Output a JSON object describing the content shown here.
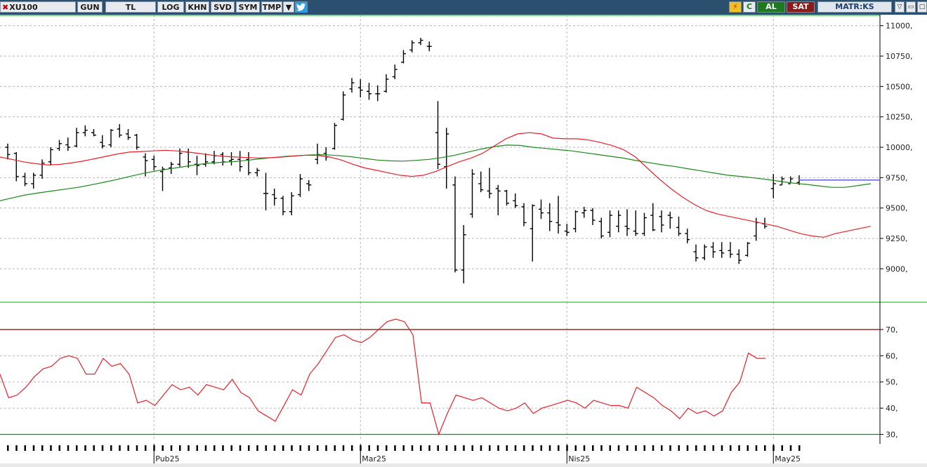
{
  "toolbar": {
    "symbol": "XU100",
    "period": "GUN",
    "currency": "TL",
    "buttons": [
      "LOG",
      "KHN",
      "SVD",
      "SYM",
      "TMP"
    ],
    "dropdown_icon": "caret-down-icon",
    "social_icon": "twitter-bird-icon",
    "flash_icon": "lightning-icon",
    "refresh_label": "C",
    "buy_label": "AL",
    "sell_label": "SAT",
    "brand_label": "MATR:KS",
    "window_icons": [
      "minimize-icon",
      "restore-icon",
      "close-icon"
    ]
  },
  "colors": {
    "toolbar_bg": "#2b4f6e",
    "buy_bg": "#1e7a1e",
    "sell_bg": "#8b1a1a",
    "bars": "#000000",
    "ma_short": "#e8202a",
    "ma_long": "#1a8a1a",
    "rsi_line": "#e8202a",
    "rsi_upper_line": "#8b1a1a",
    "rsi_lower_line": "#1a8a1a",
    "panel_border": "#55cc55",
    "grid": "#b8b8b8"
  },
  "chart_data": [
    {
      "type": "ohlc",
      "grid": true,
      "ylim": [
        8800,
        11050
      ],
      "y_ticks": [
        9000,
        9250,
        9500,
        9750,
        10000,
        10250,
        10500,
        10750,
        11000
      ],
      "y_tick_labels": [
        "9000,",
        "9250,",
        "9500,",
        "9750,",
        "10000,",
        "10250,",
        "10500,",
        "10750,",
        "11000,"
      ],
      "x_labels": [
        "Pub25",
        "Mar25",
        "Nis25",
        "May25"
      ],
      "x_label_bars": [
        17,
        41,
        65,
        89
      ],
      "bars": [
        [
          10000,
          10030,
          9900,
          9940
        ],
        [
          9950,
          9960,
          9720,
          9760
        ],
        [
          9760,
          9790,
          9680,
          9700
        ],
        [
          9700,
          9790,
          9660,
          9770
        ],
        [
          9770,
          9900,
          9740,
          9870
        ],
        [
          9880,
          10000,
          9850,
          9980
        ],
        [
          9990,
          10060,
          9970,
          10030
        ],
        [
          10020,
          10080,
          9970,
          10000
        ],
        [
          10010,
          10160,
          10000,
          10120
        ],
        [
          10120,
          10180,
          10090,
          10140
        ],
        [
          10120,
          10150,
          10090,
          10100
        ],
        [
          10040,
          10100,
          9990,
          10010
        ],
        [
          10020,
          10150,
          10000,
          10140
        ],
        [
          10150,
          10190,
          10080,
          10100
        ],
        [
          10110,
          10150,
          10060,
          10080
        ],
        [
          10100,
          10110,
          9980,
          10000
        ],
        [
          9920,
          9950,
          9760,
          9890
        ],
        [
          9900,
          9930,
          9810,
          9840
        ],
        [
          9800,
          9840,
          9640,
          9820
        ],
        [
          9830,
          9880,
          9780,
          9860
        ],
        [
          9860,
          9990,
          9840,
          9950
        ],
        [
          9960,
          9990,
          9830,
          9880
        ],
        [
          9860,
          9930,
          9770,
          9850
        ],
        [
          9860,
          9950,
          9840,
          9880
        ],
        [
          9880,
          9970,
          9860,
          9930
        ],
        [
          9940,
          9960,
          9850,
          9880
        ],
        [
          9890,
          9960,
          9850,
          9900
        ],
        [
          9900,
          9970,
          9800,
          9840
        ],
        [
          9900,
          9960,
          9770,
          9790
        ],
        [
          9790,
          9830,
          9760,
          9810
        ],
        [
          9620,
          9790,
          9480,
          9620
        ],
        [
          9610,
          9660,
          9520,
          9580
        ],
        [
          9580,
          9600,
          9440,
          9470
        ],
        [
          9470,
          9630,
          9440,
          9600
        ],
        [
          9610,
          9780,
          9590,
          9740
        ],
        [
          9700,
          9730,
          9640,
          9690
        ],
        [
          9900,
          10030,
          9860,
          9940
        ],
        [
          9950,
          10000,
          9890,
          9920
        ],
        [
          9990,
          10200,
          9980,
          10180
        ],
        [
          10230,
          10460,
          10220,
          10430
        ],
        [
          10480,
          10570,
          10450,
          10530
        ],
        [
          10490,
          10560,
          10410,
          10470
        ],
        [
          10460,
          10530,
          10390,
          10440
        ],
        [
          10440,
          10510,
          10380,
          10440
        ],
        [
          10460,
          10600,
          10450,
          10560
        ],
        [
          10580,
          10680,
          10560,
          10640
        ],
        [
          10700,
          10800,
          10690,
          10770
        ],
        [
          10800,
          10880,
          10780,
          10860
        ],
        [
          10860,
          10900,
          10840,
          10880
        ],
        [
          10830,
          10870,
          10790,
          10830
        ],
        [
          10120,
          10380,
          9820,
          9860
        ],
        [
          9840,
          10160,
          9660,
          10110
        ],
        [
          9690,
          9760,
          8970,
          8990
        ],
        [
          8990,
          9360,
          8880,
          9280
        ],
        [
          9450,
          9820,
          9420,
          9780
        ],
        [
          9700,
          9800,
          9630,
          9650
        ],
        [
          9640,
          9830,
          9580,
          9620
        ],
        [
          9660,
          9690,
          9440,
          9640
        ],
        [
          9640,
          9650,
          9520,
          9540
        ],
        [
          9560,
          9620,
          9500,
          9520
        ],
        [
          9510,
          9540,
          9350,
          9380
        ],
        [
          9330,
          9530,
          9060,
          9520
        ],
        [
          9490,
          9570,
          9410,
          9460
        ],
        [
          9460,
          9540,
          9310,
          9390
        ],
        [
          9380,
          9600,
          9290,
          9360
        ],
        [
          9310,
          9370,
          9270,
          9300
        ],
        [
          9330,
          9480,
          9300,
          9470
        ],
        [
          9460,
          9510,
          9420,
          9480
        ],
        [
          9480,
          9500,
          9360,
          9400
        ],
        [
          9390,
          9420,
          9250,
          9270
        ],
        [
          9300,
          9480,
          9260,
          9440
        ],
        [
          9350,
          9480,
          9300,
          9440
        ],
        [
          9350,
          9490,
          9270,
          9330
        ],
        [
          9310,
          9480,
          9270,
          9290
        ],
        [
          9290,
          9460,
          9270,
          9420
        ],
        [
          9440,
          9540,
          9310,
          9320
        ],
        [
          9430,
          9480,
          9300,
          9360
        ],
        [
          9440,
          9470,
          9330,
          9420
        ],
        [
          9340,
          9430,
          9270,
          9290
        ],
        [
          9290,
          9330,
          9210,
          9240
        ],
        [
          9140,
          9200,
          9060,
          9090
        ],
        [
          9090,
          9200,
          9070,
          9180
        ],
        [
          9180,
          9220,
          9090,
          9140
        ],
        [
          9150,
          9220,
          9090,
          9130
        ],
        [
          9150,
          9220,
          9090,
          9120
        ],
        [
          9120,
          9160,
          9040,
          9070
        ],
        [
          9110,
          9220,
          9100,
          9210
        ],
        [
          9270,
          9420,
          9230,
          9380
        ],
        [
          9370,
          9420,
          9330,
          9350
        ],
        [
          9660,
          9780,
          9580,
          9700
        ],
        [
          9690,
          9760,
          9690,
          9740
        ],
        [
          9700,
          9760,
          9710,
          9740
        ],
        [
          9710,
          9770,
          9690,
          9730
        ]
      ],
      "ma_short": [
        9920,
        9900,
        9880,
        9865,
        9855,
        9858,
        9870,
        9885,
        9905,
        9925,
        9945,
        9960,
        9965,
        9970,
        9975,
        9970,
        9960,
        9948,
        9935,
        9925,
        9920,
        9915,
        9912,
        9914,
        9920,
        9928,
        9935,
        9933,
        9920,
        9895,
        9860,
        9830,
        9810,
        9790,
        9770,
        9760,
        9770,
        9800,
        9840,
        9880,
        9910,
        9950,
        10010,
        10070,
        10110,
        10120,
        10110,
        10075,
        10070,
        10070,
        10060,
        10040,
        10015,
        9980,
        9920,
        9830,
        9740,
        9660,
        9590,
        9530,
        9480,
        9450,
        9430,
        9410,
        9390,
        9370,
        9350,
        9320,
        9290,
        9270,
        9260,
        9290,
        9310,
        9330,
        9350
      ],
      "ma_long": [
        9560,
        9585,
        9608,
        9625,
        9640,
        9655,
        9670,
        9690,
        9712,
        9735,
        9760,
        9785,
        9805,
        9822,
        9838,
        9855,
        9868,
        9876,
        9882,
        9892,
        9905,
        9915,
        9925,
        9932,
        9937,
        9938,
        9932,
        9922,
        9908,
        9895,
        9888,
        9886,
        9892,
        9900,
        9915,
        9935,
        9960,
        9985,
        10005,
        10018,
        10015,
        10000,
        9990,
        9980,
        9970,
        9955,
        9940,
        9925,
        9910,
        9890,
        9872,
        9855,
        9840,
        9822,
        9805,
        9787,
        9770,
        9760,
        9748,
        9735,
        9720,
        9705,
        9695,
        9682,
        9670,
        9670,
        9685,
        9700
      ],
      "series": [
        {
          "name": "",
          "values": []
        }
      ]
    },
    {
      "type": "line",
      "grid": true,
      "ylim": [
        28,
        78
      ],
      "y_ticks": [
        30,
        40,
        50,
        60,
        70
      ],
      "y_tick_labels": [
        "30,",
        "40,",
        "50,",
        "60,",
        "70,"
      ],
      "reference_lines": [
        70,
        30
      ],
      "rsi": [
        53,
        44,
        45,
        48,
        52,
        55,
        56,
        59,
        60,
        59,
        53,
        53,
        59,
        56,
        57,
        53,
        42,
        43,
        41,
        45,
        49,
        47,
        48,
        45,
        49,
        48,
        47,
        51,
        46,
        44,
        39,
        37,
        35,
        41,
        47,
        45,
        53,
        57,
        62,
        67,
        68,
        66,
        65,
        67,
        70,
        73,
        74,
        73,
        68,
        42,
        42,
        30,
        38,
        45,
        44,
        43,
        44,
        42,
        40,
        39,
        40,
        42,
        38,
        40,
        41,
        42,
        43,
        42,
        40,
        43,
        42,
        41,
        41,
        40,
        48,
        46,
        44,
        41,
        39,
        36,
        40,
        38,
        39,
        37,
        39,
        46,
        50,
        61,
        59,
        59
      ]
    }
  ]
}
